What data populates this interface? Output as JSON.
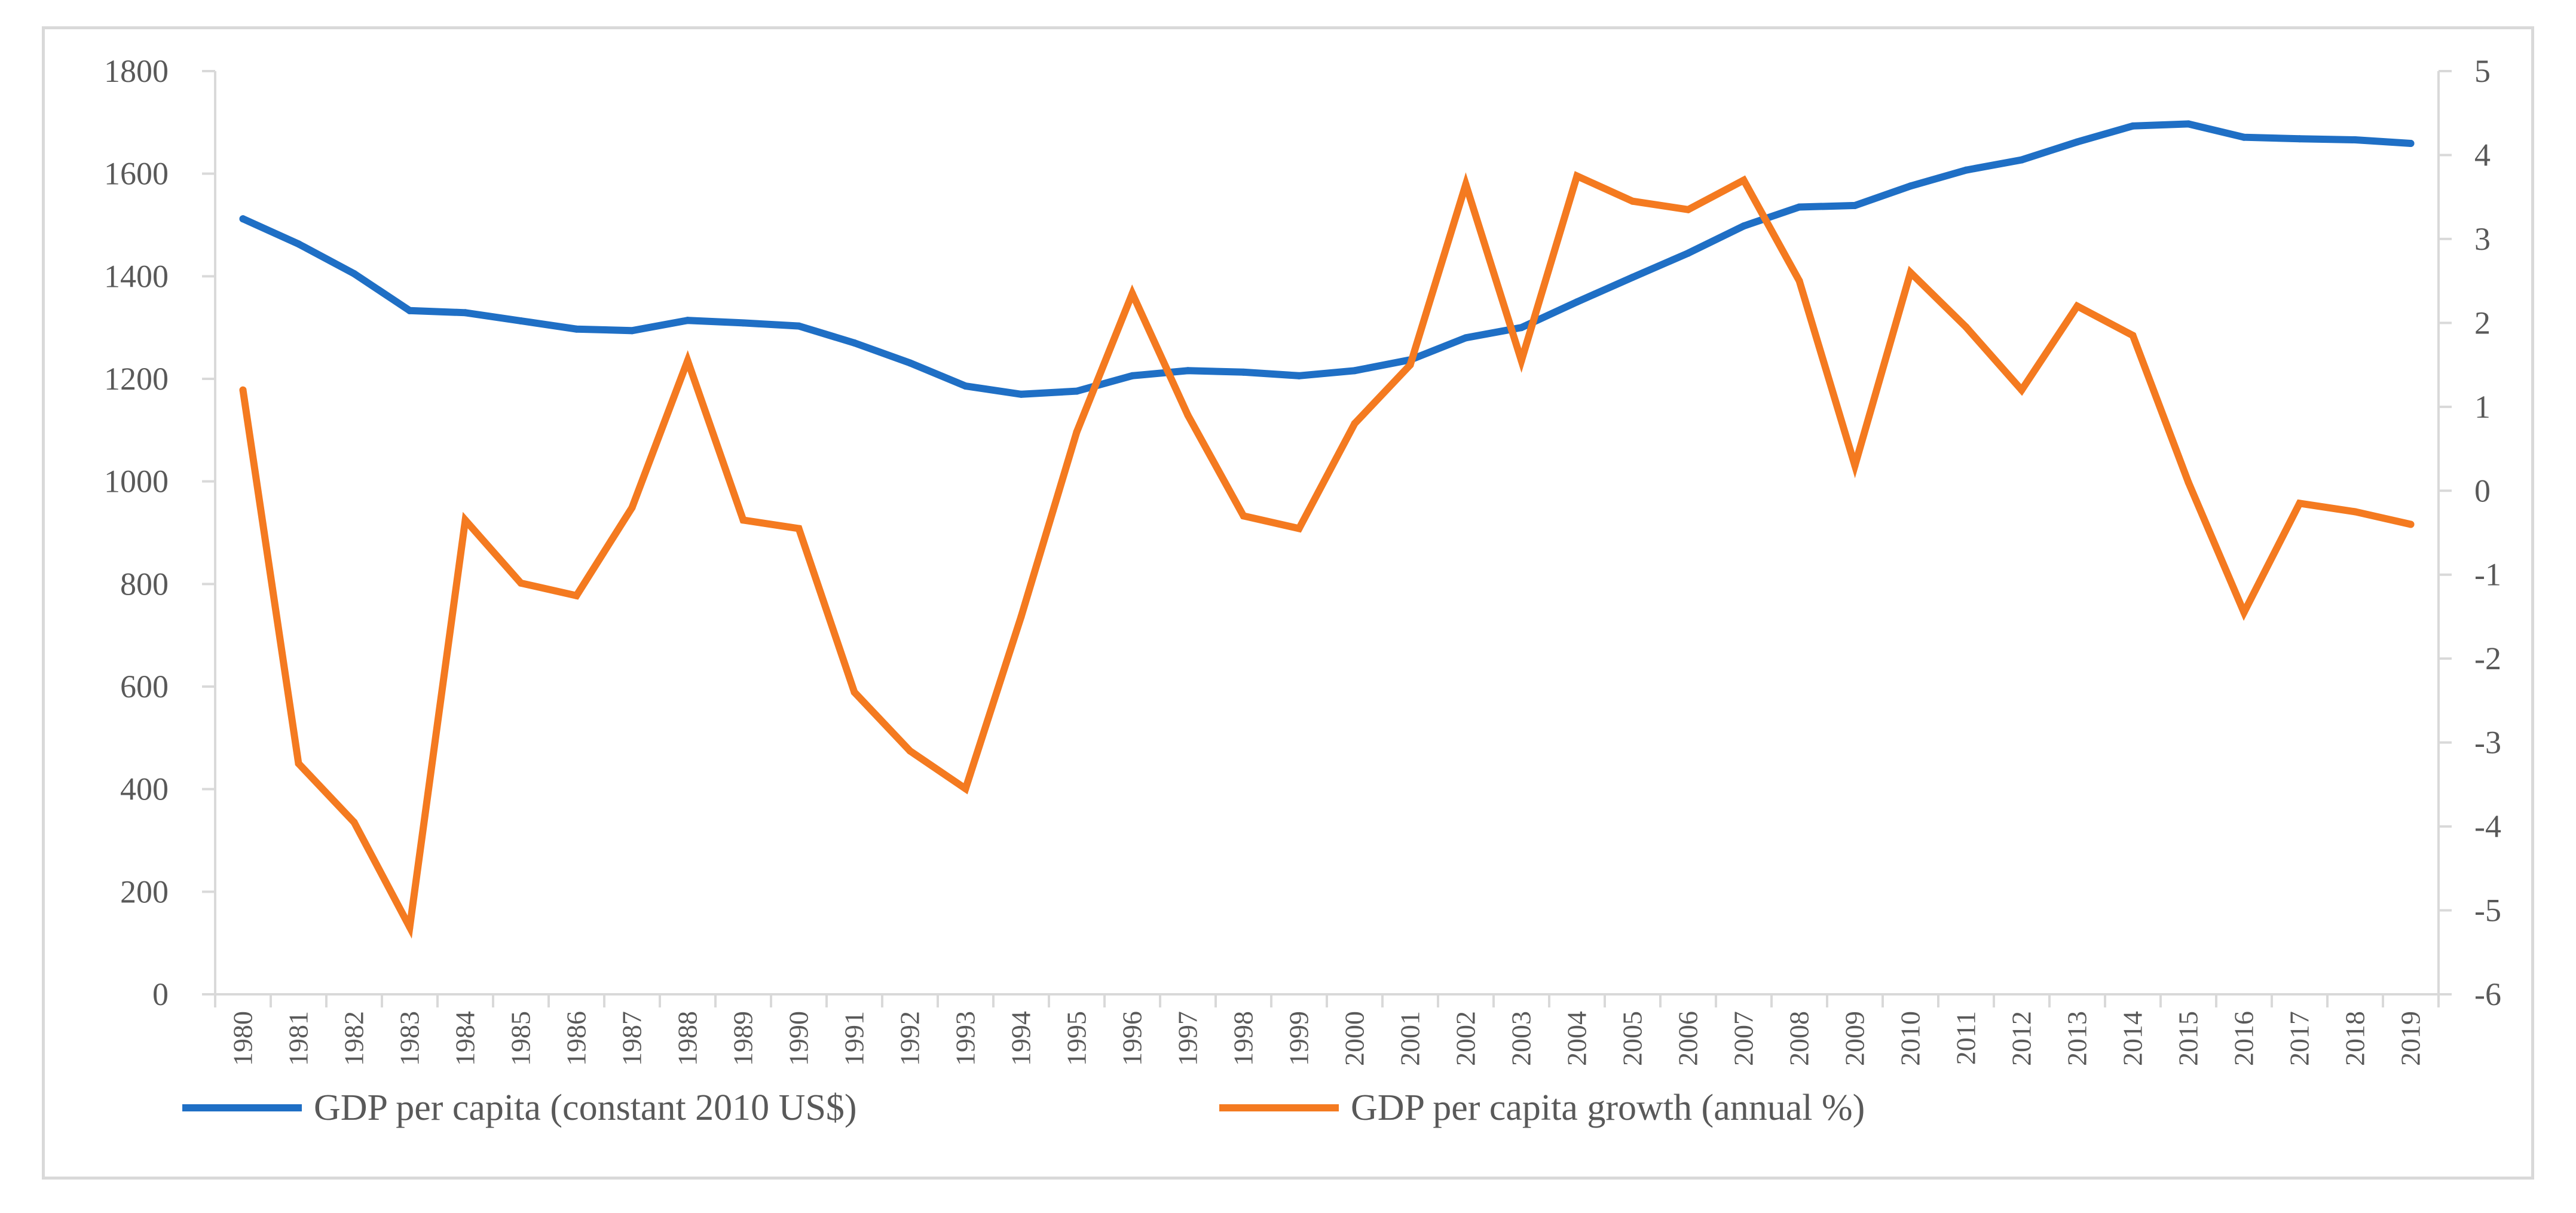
{
  "chart_data": {
    "type": "line",
    "title": "",
    "xlabel": "",
    "ylabel": "",
    "y2label": "",
    "categories": [
      "1980",
      "1981",
      "1982",
      "1983",
      "1984",
      "1985",
      "1986",
      "1987",
      "1988",
      "1989",
      "1990",
      "1991",
      "1992",
      "1993",
      "1994",
      "1995",
      "1996",
      "1997",
      "1998",
      "1999",
      "2000",
      "2001",
      "2002",
      "2003",
      "2004",
      "2005",
      "2006",
      "2007",
      "2008",
      "2009",
      "2010",
      "2011",
      "2012",
      "2013",
      "2014",
      "2015",
      "2016",
      "2017",
      "2018",
      "2019"
    ],
    "ylim": [
      0,
      1800
    ],
    "yticks": [
      0,
      200,
      400,
      600,
      800,
      1000,
      1200,
      1400,
      1600,
      1800
    ],
    "y2lim": [
      -6,
      5
    ],
    "y2ticks": [
      -6,
      -5,
      -4,
      -3,
      -2,
      -1,
      0,
      1,
      2,
      3,
      4,
      5
    ],
    "grid": false,
    "legend_position": "bottom",
    "series": [
      {
        "name": "GDP per capita (constant 2010 US$)",
        "axis": "left",
        "color": "#1f6fc5",
        "values": [
          1512,
          1463,
          1405,
          1333,
          1329,
          1313,
          1297,
          1294,
          1314,
          1309,
          1303,
          1270,
          1231,
          1186,
          1170,
          1176,
          1206,
          1216,
          1213,
          1206,
          1216,
          1237,
          1280,
          1300,
          1350,
          1398,
          1445,
          1498,
          1535,
          1538,
          1576,
          1607,
          1627,
          1662,
          1693,
          1697,
          1671,
          1668,
          1666,
          1659
        ]
      },
      {
        "name": "GDP per capita growth (annual %)",
        "axis": "right",
        "color": "#f47a20",
        "values": [
          1.2,
          -3.25,
          -3.95,
          -5.2,
          -0.35,
          -1.1,
          -1.25,
          -0.2,
          1.55,
          -0.35,
          -0.45,
          -2.4,
          -3.1,
          -3.55,
          -1.5,
          0.7,
          2.35,
          0.9,
          -0.3,
          -0.45,
          0.8,
          1.5,
          3.65,
          1.55,
          3.75,
          3.45,
          3.35,
          3.7,
          2.5,
          0.3,
          2.6,
          1.95,
          1.2,
          2.2,
          1.85,
          0.1,
          -1.45,
          -0.15,
          -0.25,
          -0.4
        ]
      }
    ]
  }
}
